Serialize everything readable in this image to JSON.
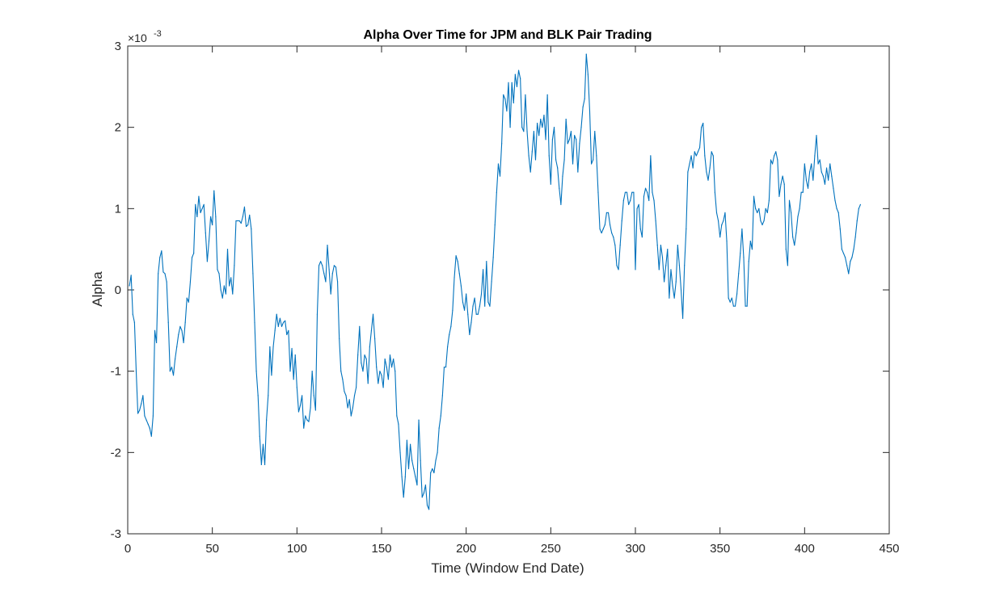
{
  "chart_data": {
    "type": "line",
    "title": "Alpha Over Time for JPM and BLK Pair Trading",
    "xlabel": "Time (Window End Date)",
    "ylabel": "Alpha",
    "y_exponent_base": "×10",
    "y_exponent_power": "-3",
    "xlim": [
      0,
      450
    ],
    "ylim": [
      -3,
      3
    ],
    "xticks": [
      0,
      50,
      100,
      150,
      200,
      250,
      300,
      350,
      400,
      450
    ],
    "yticks": [
      -3,
      -2,
      -1,
      0,
      1,
      2,
      3
    ],
    "grid": false,
    "box": true,
    "line_color": "#0072BD",
    "series": [
      {
        "x_start": 1,
        "x_step": 1,
        "values": [
          0.05,
          0.18,
          -0.3,
          -0.4,
          -1.0,
          -1.52,
          -1.48,
          -1.4,
          -1.3,
          -1.55,
          -1.6,
          -1.65,
          -1.7,
          -1.8,
          -1.55,
          -0.5,
          -0.65,
          0.2,
          0.4,
          0.48,
          0.22,
          0.2,
          0.1,
          -0.4,
          -1.0,
          -0.95,
          -1.05,
          -0.85,
          -0.7,
          -0.55,
          -0.45,
          -0.5,
          -0.65,
          -0.4,
          -0.1,
          -0.15,
          0.1,
          0.4,
          0.45,
          1.05,
          0.9,
          1.15,
          0.95,
          1.0,
          1.05,
          0.7,
          0.35,
          0.6,
          0.9,
          0.8,
          1.22,
          0.9,
          0.25,
          0.2,
          0.0,
          -0.1,
          0.05,
          -0.05,
          0.5,
          0.05,
          0.15,
          -0.05,
          0.3,
          0.85,
          0.85,
          0.85,
          0.82,
          0.9,
          1.02,
          0.78,
          0.8,
          0.92,
          0.75,
          0.2,
          -0.4,
          -1.0,
          -1.3,
          -1.8,
          -2.15,
          -1.9,
          -2.15,
          -1.6,
          -1.3,
          -0.7,
          -1.05,
          -0.7,
          -0.5,
          -0.3,
          -0.45,
          -0.35,
          -0.45,
          -0.4,
          -0.38,
          -0.55,
          -0.5,
          -1.0,
          -0.72,
          -1.1,
          -0.8,
          -1.2,
          -1.5,
          -1.42,
          -1.3,
          -1.7,
          -1.55,
          -1.6,
          -1.62,
          -1.45,
          -1.0,
          -1.3,
          -1.48,
          -0.3,
          0.3,
          0.35,
          0.3,
          0.2,
          0.1,
          0.55,
          0.25,
          -0.05,
          0.2,
          0.3,
          0.28,
          0.1,
          -0.6,
          -1.0,
          -1.1,
          -1.25,
          -1.3,
          -1.45,
          -1.35,
          -1.55,
          -1.45,
          -1.3,
          -1.2,
          -0.8,
          -0.45,
          -0.9,
          -1.0,
          -0.8,
          -0.85,
          -1.15,
          -0.7,
          -0.5,
          -0.3,
          -0.6,
          -0.95,
          -1.15,
          -1.0,
          -1.05,
          -1.2,
          -0.85,
          -0.95,
          -1.1,
          -0.8,
          -0.95,
          -0.85,
          -1.0,
          -1.55,
          -1.65,
          -2.0,
          -2.3,
          -2.55,
          -2.3,
          -1.85,
          -2.2,
          -1.9,
          -2.1,
          -2.2,
          -2.3,
          -2.4,
          -1.6,
          -2.1,
          -2.55,
          -2.5,
          -2.4,
          -2.65,
          -2.7,
          -2.25,
          -2.2,
          -2.25,
          -2.1,
          -2.0,
          -1.7,
          -1.55,
          -1.3,
          -0.95,
          -0.95,
          -0.7,
          -0.55,
          -0.45,
          -0.25,
          0.15,
          0.42,
          0.35,
          0.2,
          0.05,
          -0.15,
          -0.25,
          -0.05,
          -0.3,
          -0.55,
          -0.4,
          -0.2,
          -0.1,
          -0.3,
          -0.3,
          -0.2,
          -0.05,
          0.25,
          -0.2,
          0.35,
          -0.15,
          -0.2,
          0.1,
          0.4,
          0.8,
          1.2,
          1.55,
          1.4,
          1.8,
          2.4,
          2.35,
          2.2,
          2.55,
          2.0,
          2.55,
          2.3,
          2.65,
          2.5,
          2.7,
          2.6,
          2.0,
          1.95,
          2.4,
          1.95,
          1.65,
          1.45,
          1.7,
          1.95,
          1.6,
          2.05,
          1.9,
          2.1,
          2.0,
          2.15,
          1.85,
          2.4,
          1.65,
          1.3,
          1.85,
          2.0,
          1.6,
          1.5,
          1.25,
          1.05,
          1.4,
          1.6,
          2.1,
          1.8,
          1.85,
          1.95,
          1.55,
          1.9,
          1.85,
          1.45,
          1.8,
          2.0,
          2.25,
          2.35,
          2.9,
          2.65,
          2.2,
          1.55,
          1.6,
          1.95,
          1.65,
          1.2,
          0.75,
          0.7,
          0.75,
          0.8,
          0.95,
          0.95,
          0.8,
          0.7,
          0.65,
          0.55,
          0.3,
          0.25,
          0.55,
          0.85,
          1.1,
          1.2,
          1.2,
          1.05,
          1.1,
          1.2,
          1.2,
          0.25,
          1.0,
          1.05,
          0.75,
          0.65,
          1.15,
          1.25,
          1.2,
          1.1,
          1.65,
          1.2,
          1.1,
          0.85,
          0.55,
          0.25,
          0.55,
          0.4,
          0.1,
          0.3,
          0.5,
          -0.1,
          0.25,
          0.05,
          -0.1,
          0.1,
          0.55,
          0.3,
          0.0,
          -0.35,
          0.3,
          0.75,
          1.45,
          1.55,
          1.65,
          1.5,
          1.7,
          1.65,
          1.7,
          1.75,
          2.0,
          2.05,
          1.65,
          1.45,
          1.35,
          1.5,
          1.7,
          1.65,
          1.2,
          0.95,
          0.85,
          0.65,
          0.8,
          0.85,
          0.95,
          0.6,
          -0.1,
          -0.15,
          -0.1,
          -0.2,
          -0.2,
          -0.05,
          0.2,
          0.45,
          0.75,
          0.4,
          -0.2,
          -0.2,
          0.35,
          0.6,
          0.5,
          1.15,
          1.0,
          0.95,
          1.0,
          0.85,
          0.8,
          0.85,
          1.0,
          0.95,
          1.1,
          1.6,
          1.55,
          1.65,
          1.7,
          1.6,
          1.15,
          1.3,
          1.4,
          1.3,
          0.5,
          0.3,
          1.1,
          0.95,
          0.65,
          0.55,
          0.7,
          0.9,
          1.0,
          1.2,
          1.2,
          1.55,
          1.35,
          1.25,
          1.45,
          1.55,
          1.35,
          1.65,
          1.9,
          1.55,
          1.6,
          1.45,
          1.4,
          1.3,
          1.5,
          1.35,
          1.55,
          1.4,
          1.25,
          1.1,
          1.0,
          0.95,
          0.75,
          0.5,
          0.45,
          0.4,
          0.3,
          0.2,
          0.35,
          0.4,
          0.5,
          0.65,
          0.85,
          1.0,
          1.05
        ]
      }
    ]
  }
}
